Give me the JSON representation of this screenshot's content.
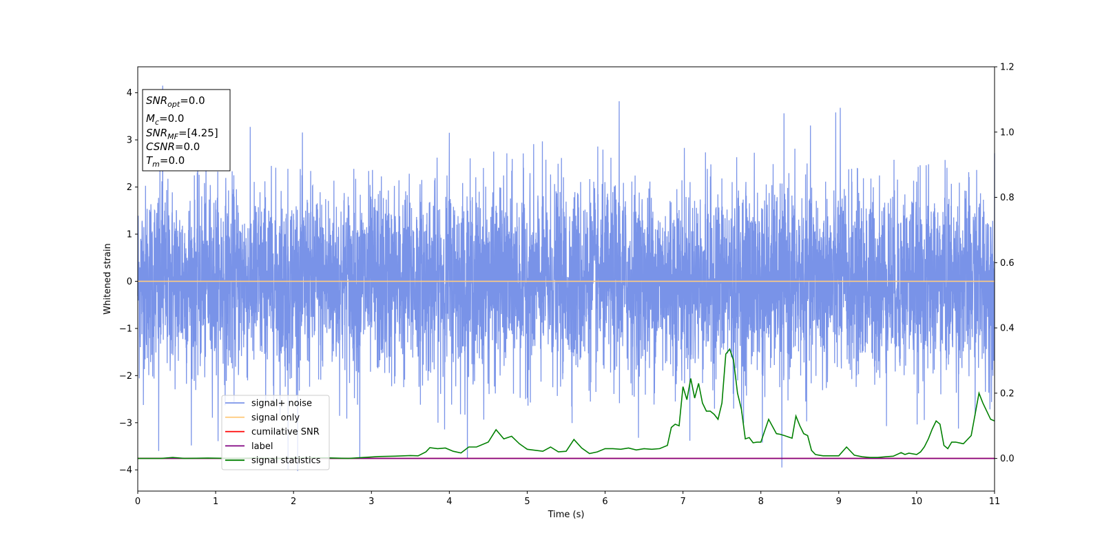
{
  "chart_data": {
    "type": "line",
    "title": "",
    "xlabel": "Time (s)",
    "ylabel": "Whitened strain",
    "xlim": [
      0,
      11
    ],
    "ylim": [
      -4.45,
      4.55
    ],
    "y2lim": [
      -0.1,
      1.2
    ],
    "x_ticks": [
      0,
      1,
      2,
      3,
      4,
      5,
      6,
      7,
      8,
      9,
      10,
      11
    ],
    "y_ticks": [
      -4,
      -3,
      -2,
      -1,
      0,
      1,
      2,
      3,
      4
    ],
    "y2_ticks": [
      0.0,
      0.2,
      0.4,
      0.6,
      0.8,
      1.0,
      1.2
    ],
    "y2_tick_labels": [
      "0.0",
      "0.2",
      "0.4",
      "0.6",
      "0.8",
      "1.0",
      "1.2"
    ],
    "grid": false,
    "legend_position": "lower-left",
    "info_box": {
      "snr_opt": {
        "name": "SNR",
        "sub": "opt",
        "value": "=0.0"
      },
      "mc": {
        "name": "M",
        "sub": "c",
        "value": "=0.0"
      },
      "snr_mf": {
        "name": "SNR",
        "sub": "MF",
        "value": "=[4.25]"
      },
      "csnr": {
        "name": "CSNR",
        "sub": "",
        "value": "=0.0"
      },
      "tm": {
        "name": "T",
        "sub": "m",
        "value": "=0.0"
      }
    },
    "series": [
      {
        "name": "signal+ noise",
        "color": "#7993e8",
        "axis": "left",
        "kind": "gaussian-noise",
        "std": 1.0,
        "spikes": [
          [
            0.32,
            4.15
          ],
          [
            0.27,
            -3.6
          ],
          [
            1.93,
            -4.0
          ],
          [
            2.85,
            -3.75
          ],
          [
            6.18,
            3.82
          ],
          [
            8.27,
            -3.95
          ],
          [
            8.02,
            -3.42
          ],
          [
            9.02,
            3.68
          ],
          [
            4.0,
            3.15
          ],
          [
            7.65,
            -2.7
          ]
        ]
      },
      {
        "name": "signal only",
        "color": "#ffcc80",
        "axis": "left",
        "x": [
          0,
          11
        ],
        "y": [
          0,
          0
        ]
      },
      {
        "name": "cumilative SNR",
        "color": "#ff0000",
        "axis": "right",
        "x": [
          0,
          11
        ],
        "y": [
          0,
          0
        ]
      },
      {
        "name": "label",
        "color": "#800080",
        "axis": "right",
        "x": [
          0,
          11
        ],
        "y": [
          0,
          0
        ]
      },
      {
        "name": "signal statistics",
        "color": "#008000",
        "axis": "right",
        "x": [
          0,
          0.3,
          0.45,
          0.6,
          0.9,
          1.2,
          1.5,
          1.8,
          2.1,
          2.4,
          2.7,
          2.9,
          3.1,
          3.3,
          3.5,
          3.6,
          3.7,
          3.75,
          3.85,
          3.95,
          4.05,
          4.15,
          4.25,
          4.35,
          4.5,
          4.6,
          4.7,
          4.8,
          4.9,
          5.0,
          5.2,
          5.3,
          5.4,
          5.5,
          5.6,
          5.7,
          5.8,
          5.9,
          6.0,
          6.1,
          6.2,
          6.3,
          6.4,
          6.5,
          6.6,
          6.7,
          6.8,
          6.85,
          6.9,
          6.95,
          7.0,
          7.05,
          7.1,
          7.15,
          7.2,
          7.25,
          7.3,
          7.35,
          7.4,
          7.45,
          7.5,
          7.55,
          7.6,
          7.65,
          7.7,
          7.75,
          7.8,
          7.85,
          7.9,
          7.95,
          8.0,
          8.1,
          8.2,
          8.25,
          8.3,
          8.4,
          8.45,
          8.5,
          8.55,
          8.6,
          8.65,
          8.7,
          8.75,
          8.8,
          9.0,
          9.1,
          9.2,
          9.3,
          9.4,
          9.5,
          9.6,
          9.7,
          9.8,
          9.85,
          9.9,
          10.0,
          10.05,
          10.1,
          10.15,
          10.2,
          10.25,
          10.3,
          10.35,
          10.4,
          10.45,
          10.5,
          10.6,
          10.7,
          10.8,
          10.85,
          10.95,
          11.0
        ],
        "y": [
          0,
          0.0,
          0.003,
          0.0,
          0.001,
          0.0,
          0.001,
          0.0,
          0.001,
          0.002,
          0.0,
          0.003,
          0.006,
          0.007,
          0.009,
          0.008,
          0.02,
          0.033,
          0.03,
          0.032,
          0.022,
          0.017,
          0.035,
          0.035,
          0.05,
          0.088,
          0.06,
          0.068,
          0.045,
          0.028,
          0.022,
          0.035,
          0.02,
          0.022,
          0.058,
          0.032,
          0.015,
          0.02,
          0.03,
          0.03,
          0.028,
          0.032,
          0.026,
          0.03,
          0.028,
          0.03,
          0.04,
          0.095,
          0.105,
          0.1,
          0.22,
          0.18,
          0.245,
          0.185,
          0.23,
          0.17,
          0.145,
          0.145,
          0.135,
          0.12,
          0.17,
          0.32,
          0.335,
          0.3,
          0.2,
          0.15,
          0.06,
          0.064,
          0.048,
          0.05,
          0.05,
          0.12,
          0.076,
          0.074,
          0.07,
          0.062,
          0.13,
          0.1,
          0.076,
          0.07,
          0.025,
          0.012,
          0.01,
          0.008,
          0.008,
          0.035,
          0.01,
          0.005,
          0.003,
          0.003,
          0.005,
          0.007,
          0.018,
          0.012,
          0.016,
          0.012,
          0.02,
          0.036,
          0.06,
          0.09,
          0.115,
          0.105,
          0.04,
          0.03,
          0.05,
          0.05,
          0.045,
          0.07,
          0.2,
          0.17,
          0.12,
          0.115
        ]
      }
    ]
  }
}
